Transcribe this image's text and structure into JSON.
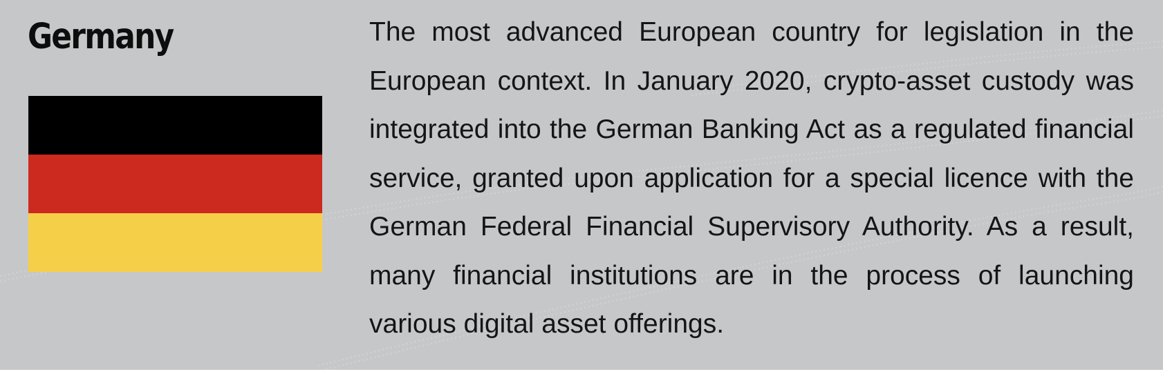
{
  "panel": {
    "background": "#c6c7c9"
  },
  "country": {
    "name": "Germany"
  },
  "flag": {
    "stripes": [
      {
        "name": "black",
        "color": "#000000"
      },
      {
        "name": "red",
        "color": "#cc2a1e"
      },
      {
        "name": "gold",
        "color": "#f6cf49"
      }
    ]
  },
  "description": {
    "text": "The most advanced European country for legislation in the European context. In January 2020, crypto-asset custody was integrated into the German Banking Act as a regulated financial service, granted upon application for a special licence with the German Federal Financial Supervisory Authority. As a result, many financial institutions are in the process of launching various digital asset offerings."
  }
}
